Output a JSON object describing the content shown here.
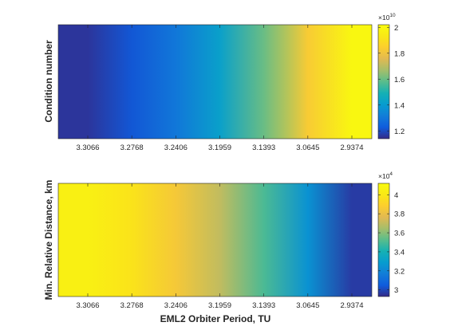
{
  "chart_data": [
    {
      "type": "heatmap",
      "title": "",
      "xlabel": "",
      "ylabel": "Condition number",
      "x_tick_labels": [
        "3.3066",
        "3.2768",
        "3.2406",
        "3.1959",
        "3.1393",
        "3.0645",
        "2.9374"
      ],
      "x_direction": "decreasing",
      "colormap": "parula",
      "colorbar": {
        "exponent_label": "×10",
        "exponent": "10",
        "ticks": [
          1.2,
          1.4,
          1.6,
          1.8,
          2
        ],
        "tick_labels": [
          "1.2",
          "1.4",
          "1.6",
          "1.8",
          "2"
        ],
        "range": [
          1.14,
          2.02
        ]
      },
      "x_values": [
        3.3066,
        3.2768,
        3.2406,
        3.1959,
        3.1393,
        3.0645,
        2.9374
      ],
      "values_x1e10": [
        1.16,
        1.22,
        1.3,
        1.42,
        1.6,
        1.83,
        2.0
      ],
      "values_constant_along_y": true
    },
    {
      "type": "heatmap",
      "title": "",
      "xlabel": "EML2 Orbiter Period, TU",
      "ylabel": "Min. Relative Distance, km",
      "x_tick_labels": [
        "3.3066",
        "3.2768",
        "3.2406",
        "3.1959",
        "3.1393",
        "3.0645",
        "2.9374"
      ],
      "x_direction": "decreasing",
      "colormap": "parula",
      "colorbar": {
        "exponent_label": "×10",
        "exponent": "4",
        "ticks": [
          3,
          3.2,
          3.4,
          3.6,
          3.8,
          4
        ],
        "tick_labels": [
          "3",
          "3.2",
          "3.4",
          "3.6",
          "3.8",
          "4"
        ],
        "range": [
          2.93,
          4.12
        ]
      },
      "x_values": [
        3.3066,
        3.2768,
        3.2406,
        3.1959,
        3.1393,
        3.0645,
        2.9374
      ],
      "values_x1e4": [
        4.05,
        3.98,
        3.85,
        3.7,
        3.5,
        3.25,
        2.97
      ],
      "values_constant_along_y": true
    }
  ],
  "colors": {
    "parula_low": "#352a87",
    "parula_high": "#f9fb0e",
    "axis": "#262626"
  }
}
